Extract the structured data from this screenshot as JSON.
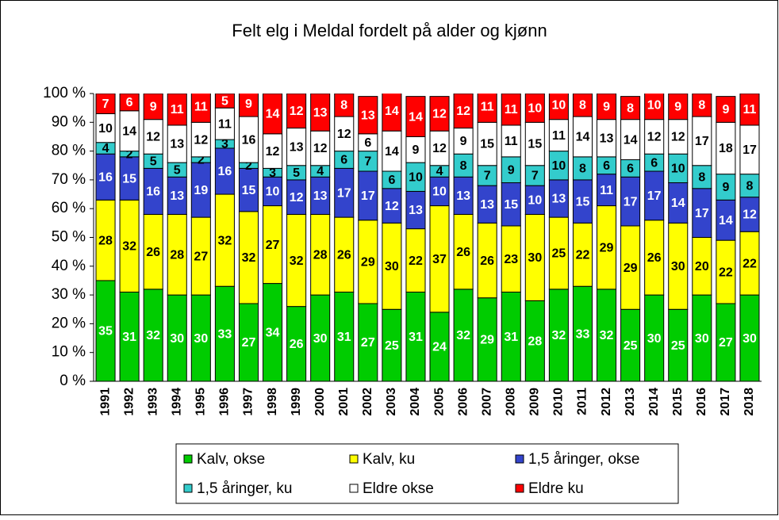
{
  "chart_data": {
    "type": "stacked_bar",
    "title": "Felt elg i Meldal fordelt på alder og kjønn",
    "categories": [
      "1991",
      "1992",
      "1993",
      "1994",
      "1995",
      "1996",
      "1997",
      "1998",
      "1999",
      "2000",
      "2001",
      "2002",
      "2003",
      "2004",
      "2005",
      "2006",
      "2007",
      "2008",
      "2009",
      "2010",
      "2011",
      "2012",
      "2013",
      "2014",
      "2015",
      "2016",
      "2017",
      "2018"
    ],
    "series": [
      {
        "name": "Kalv, okse",
        "color": "#00cc00",
        "values": [
          35,
          31,
          32,
          30,
          30,
          33,
          27,
          34,
          26,
          30,
          31,
          27,
          25,
          31,
          24,
          32,
          29,
          31,
          28,
          32,
          33,
          32,
          25,
          30,
          25,
          30,
          27,
          30
        ]
      },
      {
        "name": "Kalv, ku",
        "color": "#ffff00",
        "values": [
          28,
          32,
          26,
          28,
          27,
          32,
          32,
          27,
          32,
          28,
          26,
          29,
          30,
          22,
          37,
          26,
          26,
          23,
          30,
          25,
          22,
          29,
          29,
          26,
          30,
          20,
          22,
          22
        ]
      },
      {
        "name": "1,5 åringer, okse",
        "color": "#3344cc",
        "values": [
          16,
          15,
          16,
          13,
          19,
          16,
          15,
          10,
          12,
          13,
          17,
          17,
          12,
          13,
          10,
          13,
          13,
          15,
          10,
          13,
          15,
          11,
          17,
          17,
          14,
          17,
          14,
          12
        ]
      },
      {
        "name": "1,5 åringer, ku",
        "color": "#33cccc",
        "values": [
          4,
          2,
          5,
          5,
          2,
          3,
          2,
          3,
          5,
          4,
          6,
          7,
          6,
          10,
          4,
          8,
          7,
          9,
          7,
          10,
          8,
          6,
          6,
          6,
          10,
          8,
          9,
          8
        ]
      },
      {
        "name": "Eldre okse",
        "color": "#ffffff",
        "values": [
          10,
          14,
          12,
          13,
          12,
          11,
          16,
          12,
          13,
          12,
          12,
          6,
          14,
          9,
          12,
          9,
          15,
          11,
          15,
          11,
          14,
          13,
          14,
          12,
          12,
          17,
          18,
          17
        ]
      },
      {
        "name": "Eldre ku",
        "color": "#ff0000",
        "values": [
          7,
          6,
          9,
          11,
          11,
          5,
          9,
          14,
          12,
          13,
          8,
          13,
          14,
          14,
          12,
          12,
          11,
          11,
          10,
          10,
          8,
          9,
          8,
          10,
          9,
          8,
          9,
          11
        ]
      }
    ],
    "ylim": [
      0,
      100
    ],
    "yticks": [
      {
        "value": 0,
        "label": "0 %"
      },
      {
        "value": 10,
        "label": "10 %"
      },
      {
        "value": 20,
        "label": "20 %"
      },
      {
        "value": 30,
        "label": "30 %"
      },
      {
        "value": 40,
        "label": "40 %"
      },
      {
        "value": 50,
        "label": "50 %"
      },
      {
        "value": 60,
        "label": "60 %"
      },
      {
        "value": 70,
        "label": "70 %"
      },
      {
        "value": 80,
        "label": "80 %"
      },
      {
        "value": 90,
        "label": "90 %"
      },
      {
        "value": 100,
        "label": "100 %"
      }
    ]
  }
}
